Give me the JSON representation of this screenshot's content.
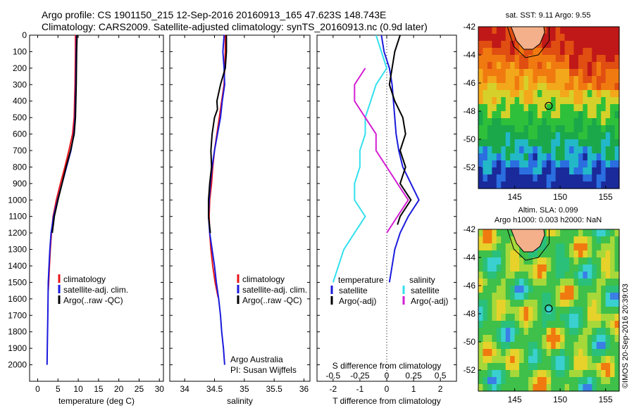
{
  "header": {
    "line1": "Argo profile: CS 1901150_215 12-Sep-2016 20160913_165 47.623S 148.743E",
    "line2": "Climatology: CARS2009. Satellite-adjusted climatology: synTS_20160913.nc (0.9d later)"
  },
  "colors": {
    "climatology": "#e8161a",
    "satellite": "#1a1adc",
    "argo": "#000000",
    "satellite_salinity": "#33e0ee",
    "argo_salinity": "#d41fd4"
  },
  "chart_data": [
    {
      "type": "line",
      "id": "temperature",
      "xlabel": "temperature (deg C)",
      "xlim": [
        -2,
        31
      ],
      "xticks": [
        0,
        5,
        10,
        15,
        20,
        25,
        30
      ],
      "ylim": [
        2100,
        0
      ],
      "yticks": [
        0,
        100,
        200,
        300,
        400,
        500,
        600,
        700,
        800,
        900,
        1000,
        1100,
        1200,
        1300,
        1400,
        1500,
        1600,
        1700,
        1800,
        1900,
        2000
      ],
      "legend": [
        "climatology",
        "satellite-adj. clim.",
        "Argo(..raw -QC)"
      ],
      "series": [
        {
          "name": "climatology",
          "color": "#e8161a",
          "points": [
            [
              9.3,
              0
            ],
            [
              9.3,
              100
            ],
            [
              9.2,
              300
            ],
            [
              9.0,
              500
            ],
            [
              8.6,
              600
            ],
            [
              7.7,
              700
            ],
            [
              6.7,
              800
            ],
            [
              5.6,
              900
            ],
            [
              4.6,
              1000
            ],
            [
              3.8,
              1100
            ],
            [
              3.4,
              1200
            ],
            [
              3.1,
              1300
            ],
            [
              2.9,
              1400
            ],
            [
              2.7,
              1500
            ],
            [
              2.6,
              1550
            ]
          ]
        },
        {
          "name": "satellite-adj. clim.",
          "color": "#1a1adc",
          "points": [
            [
              9.6,
              0
            ],
            [
              9.5,
              100
            ],
            [
              9.4,
              300
            ],
            [
              9.2,
              500
            ],
            [
              8.9,
              600
            ],
            [
              8.2,
              700
            ],
            [
              7.1,
              800
            ],
            [
              6.0,
              900
            ],
            [
              4.9,
              1000
            ],
            [
              3.9,
              1100
            ],
            [
              3.3,
              1200
            ],
            [
              3.0,
              1300
            ],
            [
              2.8,
              1400
            ],
            [
              2.6,
              1500
            ],
            [
              2.5,
              1700
            ],
            [
              2.4,
              1850
            ],
            [
              2.3,
              2000
            ]
          ]
        },
        {
          "name": "Argo(..raw -QC)",
          "color": "#000000",
          "points": [
            [
              9.7,
              0
            ],
            [
              9.6,
              100
            ],
            [
              9.5,
              300
            ],
            [
              9.3,
              500
            ],
            [
              9.0,
              600
            ],
            [
              8.1,
              700
            ],
            [
              7.0,
              800
            ],
            [
              6.0,
              900
            ],
            [
              5.0,
              1000
            ],
            [
              4.1,
              1100
            ],
            [
              3.6,
              1200
            ]
          ]
        }
      ]
    },
    {
      "type": "line",
      "id": "salinity",
      "xlabel": "salinity",
      "xlim": [
        33.75,
        36.1
      ],
      "xticks": [
        34,
        34.5,
        35,
        35.5,
        36
      ],
      "ylim": [
        2100,
        0
      ],
      "legend": [
        "climatology",
        "satellite-adj. clim.",
        "Argo(..raw -QC)"
      ],
      "annotation": [
        "Argo Australia",
        "PI: Susan Wijffels"
      ],
      "series": [
        {
          "name": "climatology",
          "color": "#e8161a",
          "points": [
            [
              34.68,
              0
            ],
            [
              34.68,
              100
            ],
            [
              34.67,
              200
            ],
            [
              34.66,
              300
            ],
            [
              34.62,
              400
            ],
            [
              34.58,
              500
            ],
            [
              34.54,
              600
            ],
            [
              34.5,
              700
            ],
            [
              34.47,
              800
            ],
            [
              34.45,
              900
            ],
            [
              34.42,
              1000
            ],
            [
              34.41,
              1100
            ],
            [
              34.42,
              1200
            ],
            [
              34.44,
              1300
            ],
            [
              34.47,
              1400
            ],
            [
              34.51,
              1500
            ],
            [
              34.56,
              1590
            ]
          ]
        },
        {
          "name": "satellite-adj. clim.",
          "color": "#1a1adc",
          "points": [
            [
              34.66,
              0
            ],
            [
              34.64,
              100
            ],
            [
              34.66,
              200
            ],
            [
              34.67,
              300
            ],
            [
              34.63,
              400
            ],
            [
              34.6,
              500
            ],
            [
              34.55,
              600
            ],
            [
              34.5,
              700
            ],
            [
              34.46,
              800
            ],
            [
              34.43,
              900
            ],
            [
              34.41,
              1000
            ],
            [
              34.4,
              1100
            ],
            [
              34.42,
              1200
            ],
            [
              34.46,
              1300
            ],
            [
              34.5,
              1400
            ],
            [
              34.53,
              1500
            ],
            [
              34.57,
              1600
            ],
            [
              34.6,
              1700
            ],
            [
              34.62,
              1800
            ],
            [
              34.65,
              1900
            ],
            [
              34.67,
              2000
            ]
          ]
        },
        {
          "name": "Argo(..raw -QC)",
          "color": "#000000",
          "points": [
            [
              34.7,
              0
            ],
            [
              34.7,
              100
            ],
            [
              34.68,
              200
            ],
            [
              34.6,
              300
            ],
            [
              34.54,
              400
            ],
            [
              34.55,
              450
            ],
            [
              34.5,
              500
            ],
            [
              34.46,
              600
            ],
            [
              34.44,
              700
            ],
            [
              34.45,
              800
            ],
            [
              34.42,
              900
            ],
            [
              34.4,
              1000
            ],
            [
              34.4,
              1100
            ],
            [
              34.43,
              1200
            ]
          ]
        }
      ]
    },
    {
      "type": "line",
      "id": "difference",
      "xlabel": "T difference from climatology",
      "xlabel_top": "S difference from climatology",
      "xlim": [
        -2.6,
        2.6
      ],
      "xticks": [
        -2,
        -1,
        0,
        1,
        2
      ],
      "xticks_top": [
        -0.5,
        -0.25,
        0,
        0.25,
        0.5
      ],
      "ylim": [
        2100,
        0
      ],
      "legend_title_left": "temperature",
      "legend_title_right": "salinity",
      "legend": [
        "satellite",
        "Argo(-adj)",
        "satellite",
        "Argo(-adj)"
      ],
      "series": [
        {
          "name": "satellite",
          "color": "#1a1adc",
          "points": [
            [
              -0.2,
              0
            ],
            [
              -0.1,
              100
            ],
            [
              0.1,
              200
            ],
            [
              0.2,
              300
            ],
            [
              0.25,
              400
            ],
            [
              0.3,
              500
            ],
            [
              0.35,
              600
            ],
            [
              0.45,
              700
            ],
            [
              0.6,
              800
            ],
            [
              0.9,
              900
            ],
            [
              1.2,
              1000
            ],
            [
              0.8,
              1100
            ],
            [
              0.5,
              1200
            ],
            [
              0.3,
              1300
            ],
            [
              0.2,
              1400
            ],
            [
              0.1,
              1500
            ]
          ]
        },
        {
          "name": "Argo(-adj)",
          "color": "#000000",
          "points": [
            [
              0.5,
              0
            ],
            [
              0.3,
              100
            ],
            [
              0.2,
              200
            ],
            [
              0.1,
              300
            ],
            [
              0.3,
              400
            ],
            [
              0.6,
              500
            ],
            [
              0.7,
              600
            ],
            [
              0.5,
              700
            ],
            [
              0.7,
              800
            ],
            [
              0.5,
              900
            ],
            [
              0.9,
              1000
            ],
            [
              0.5,
              1100
            ],
            [
              0.4,
              1150
            ]
          ]
        },
        {
          "name": "satellite",
          "color": "#33e0ee",
          "points": [
            [
              -0.1,
              0
            ],
            [
              -0.05,
              100
            ],
            [
              0.0,
              200
            ],
            [
              -0.1,
              300
            ],
            [
              -0.15,
              400
            ],
            [
              -0.2,
              500
            ],
            [
              -0.2,
              600
            ],
            [
              -0.25,
              700
            ],
            [
              -0.25,
              800
            ],
            [
              -0.3,
              900
            ],
            [
              -0.3,
              1000
            ],
            [
              -0.2,
              1100
            ],
            [
              -0.3,
              1200
            ],
            [
              -0.4,
              1300
            ],
            [
              -0.5,
              1500
            ]
          ]
        },
        {
          "name": "Argo(-adj)",
          "color": "#d41fd4",
          "points": [
            [
              -0.2,
              200
            ],
            [
              -0.3,
              300
            ],
            [
              -0.3,
              400
            ],
            [
              -0.2,
              500
            ],
            [
              -0.1,
              600
            ],
            [
              -0.1,
              700
            ],
            [
              0.0,
              800
            ],
            [
              0.1,
              900
            ],
            [
              0.2,
              1000
            ],
            [
              0.1,
              1100
            ],
            [
              0.0,
              1200
            ]
          ]
        }
      ]
    },
    {
      "type": "heatmap",
      "id": "sst_map",
      "title": "sat. SST: 9.11  Argo: 9.55",
      "xlim": [
        141,
        156.5
      ],
      "ylim": [
        -53.5,
        -42
      ],
      "xticks": [
        145,
        150,
        155
      ],
      "yticks": [
        -42,
        -44,
        -46,
        -48,
        -50,
        -52
      ],
      "marker": [
        148.743,
        -47.623
      ]
    },
    {
      "type": "heatmap",
      "id": "sla_map",
      "title": "Altim. SLA: 0.099",
      "title2": "Argo h1000: 0.003 h2000: NaN",
      "xlim": [
        141,
        156.5
      ],
      "ylim": [
        -53.5,
        -42
      ],
      "xticks": [
        145,
        150,
        155
      ],
      "yticks": [
        -42,
        -44,
        -46,
        -48,
        -50,
        -52
      ],
      "marker": [
        148.743,
        -47.623
      ],
      "side_label": "©IMOS 20-Sep-2016 20:39:03"
    }
  ]
}
